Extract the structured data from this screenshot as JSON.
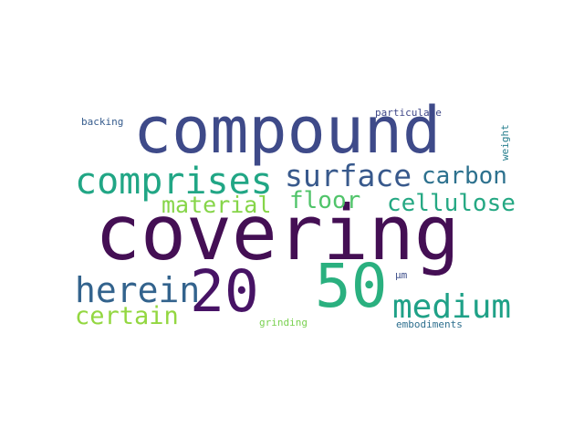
{
  "words": {
    "covering": {
      "text": "covering",
      "color": "#440f54"
    },
    "compound": {
      "text": "compound",
      "color": "#3e4a89"
    },
    "fifty": {
      "text": "50",
      "color": "#2ab07f"
    },
    "twenty": {
      "text": "20",
      "color": "#471365"
    },
    "comprises": {
      "text": "comprises",
      "color": "#21a685"
    },
    "surface": {
      "text": "surface",
      "color": "#38598c"
    },
    "medium": {
      "text": "medium",
      "color": "#1fa187"
    },
    "herein": {
      "text": "herein",
      "color": "#33638d"
    },
    "carbon": {
      "text": "carbon",
      "color": "#2d718e"
    },
    "cellulose": {
      "text": "cellulose",
      "color": "#25a883"
    },
    "floor": {
      "text": "floor",
      "color": "#50c46a"
    },
    "material": {
      "text": "material",
      "color": "#86d549"
    },
    "certain": {
      "text": "certain",
      "color": "#93d741"
    },
    "backing": {
      "text": "backing",
      "color": "#365c8d"
    },
    "particulate": {
      "text": "particulate",
      "color": "#3f4788"
    },
    "grinding": {
      "text": "grinding",
      "color": "#7ad151"
    },
    "embodiments": {
      "text": "embodiments",
      "color": "#2e6f8e"
    },
    "um": {
      "text": "µm",
      "color": "#3d4e8a"
    },
    "weight": {
      "text": "weight",
      "color": "#277f8e"
    }
  }
}
